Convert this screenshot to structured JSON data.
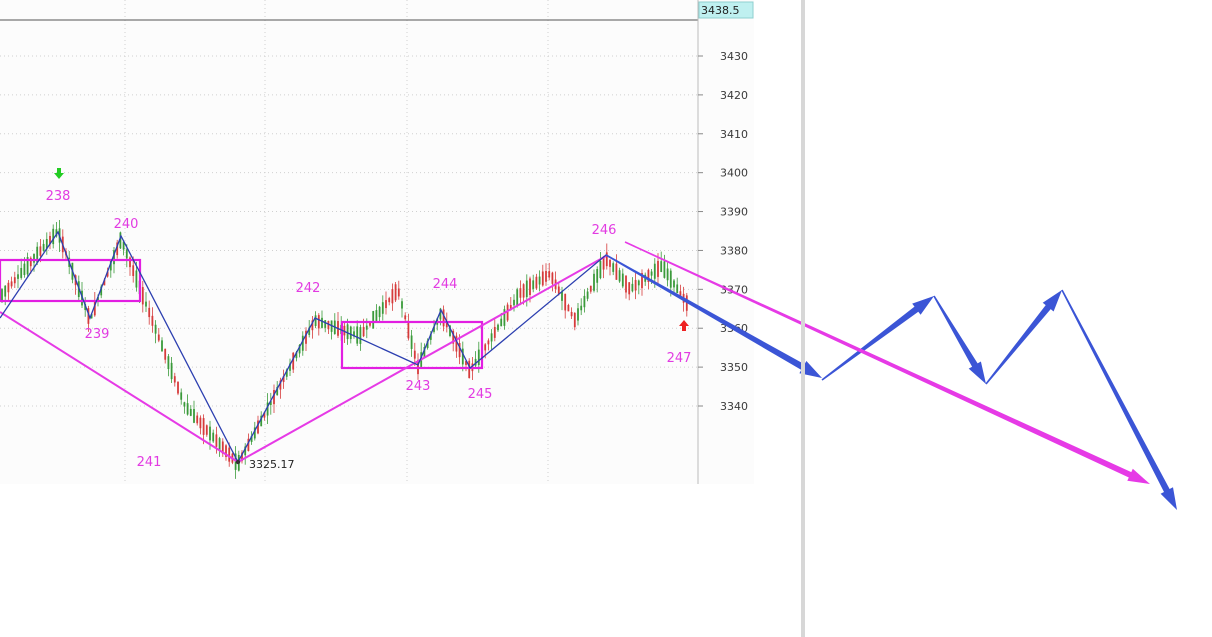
{
  "chart_data": {
    "type": "candlestick",
    "y_axis": {
      "ticks": [
        3340,
        3350,
        3360,
        3370,
        3380,
        3390,
        3400,
        3410,
        3420,
        3430
      ],
      "current_price": "3438.5",
      "range": [
        3315,
        3440
      ],
      "side": "right"
    },
    "low_label": "3325.17",
    "colors": {
      "wave_label": "#e23be2",
      "pattern_line": "#e63ae6",
      "zigzag": "#2c3fb0",
      "projection": "#3b55d6",
      "candle_up": "#d63b3b",
      "candle_down": "#3a9a3a",
      "box": "#e21ee2",
      "current_price_bg": "#bff0f0"
    },
    "wave_points": [
      {
        "name": "238",
        "price": 3385,
        "kind": "high"
      },
      {
        "name": "239",
        "price": 3362,
        "kind": "low"
      },
      {
        "name": "240",
        "price": 3383,
        "kind": "high"
      },
      {
        "name": "241",
        "price": 3325.17,
        "kind": "low"
      },
      {
        "name": "242",
        "price": 3362,
        "kind": "high"
      },
      {
        "name": "243",
        "price": 3350,
        "kind": "low"
      },
      {
        "name": "244",
        "price": 3364,
        "kind": "high"
      },
      {
        "name": "245",
        "price": 3349,
        "kind": "low"
      },
      {
        "name": "246",
        "price": 3378,
        "kind": "high"
      },
      {
        "name": "247",
        "price": 3364,
        "kind": "low"
      }
    ],
    "signals": [
      {
        "at": "238",
        "type": "sell-arrow",
        "color": "#22cc22"
      },
      {
        "at": "247",
        "type": "buy-arrow",
        "color": "#ee2222"
      }
    ],
    "legend": "none",
    "grid": true
  }
}
